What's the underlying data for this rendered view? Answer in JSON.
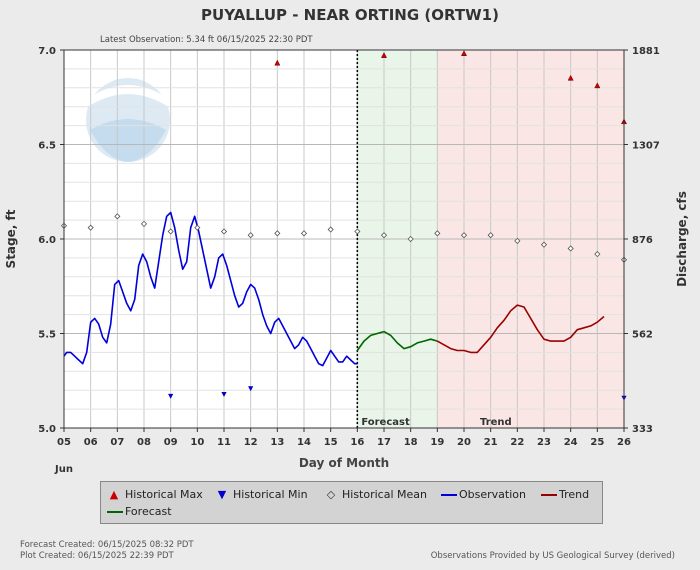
{
  "header": {
    "title": "PUYALLUP - NEAR ORTING  (ORTW1)",
    "latest_observation": "Latest Observation: 5.34 ft 06/15/2025 22:30 PDT"
  },
  "footer": {
    "forecast_created": "Forecast Created: 06/15/2025 08:32 PDT",
    "plot_created": "Plot Created: 06/15/2025 22:39 PDT",
    "provider": "Observations Provided by US Geological Survey (derived)"
  },
  "labels": {
    "forecast_region": "Forecast",
    "trend_region": "Trend",
    "month": "Jun"
  },
  "legend": {
    "hist_max": "Historical Max",
    "hist_min": "Historical Min",
    "hist_mean": "Historical Mean",
    "observation": "Observation",
    "trend": "Trend",
    "forecast": "Forecast"
  },
  "colors": {
    "observation": "#0000dd",
    "forecast": "#006600",
    "trend": "#990000",
    "hist_max": "#cc0000",
    "hist_min": "#0000cc",
    "forecast_bg": "#e8f5e8",
    "trend_bg": "#fbe6e6"
  },
  "chart_data": {
    "type": "line",
    "xlabel": "Day of Month",
    "ylabel": "Stage, ft",
    "y2label": "Discharge, cfs",
    "xlim": [
      5,
      26
    ],
    "ylim": [
      5.0,
      7.0
    ],
    "xticks": [
      "05",
      "06",
      "07",
      "08",
      "09",
      "10",
      "11",
      "12",
      "13",
      "14",
      "15",
      "16",
      "17",
      "18",
      "19",
      "20",
      "21",
      "22",
      "23",
      "24",
      "25",
      "26"
    ],
    "yticks": [
      "5.0",
      "5.5",
      "6.0",
      "6.5",
      "7.0"
    ],
    "y2ticks": [
      "333",
      "562",
      "876",
      "1307",
      "1881"
    ],
    "forecast_start": 16,
    "trend_start": 19,
    "grid": true,
    "legend_position": "bottom",
    "series": [
      {
        "name": "Observation",
        "x": [
          5.0,
          5.1,
          5.25,
          5.4,
          5.55,
          5.7,
          5.85,
          6.0,
          6.15,
          6.3,
          6.45,
          6.6,
          6.75,
          6.9,
          7.05,
          7.2,
          7.35,
          7.5,
          7.65,
          7.8,
          7.95,
          8.1,
          8.25,
          8.4,
          8.55,
          8.7,
          8.85,
          9.0,
          9.15,
          9.3,
          9.45,
          9.6,
          9.75,
          9.9,
          10.05,
          10.2,
          10.35,
          10.5,
          10.65,
          10.8,
          10.95,
          11.1,
          11.25,
          11.4,
          11.55,
          11.7,
          11.85,
          12.0,
          12.15,
          12.3,
          12.45,
          12.6,
          12.75,
          12.9,
          13.05,
          13.2,
          13.35,
          13.5,
          13.65,
          13.8,
          13.95,
          14.1,
          14.25,
          14.4,
          14.55,
          14.7,
          14.85,
          15.0,
          15.15,
          15.3,
          15.45,
          15.6,
          15.75,
          15.9,
          16.0
        ],
        "values": [
          5.38,
          5.4,
          5.4,
          5.38,
          5.36,
          5.34,
          5.4,
          5.56,
          5.58,
          5.55,
          5.48,
          5.45,
          5.55,
          5.76,
          5.78,
          5.72,
          5.66,
          5.62,
          5.68,
          5.86,
          5.92,
          5.88,
          5.8,
          5.74,
          5.88,
          6.02,
          6.12,
          6.14,
          6.06,
          5.94,
          5.84,
          5.88,
          6.06,
          6.12,
          6.04,
          5.94,
          5.84,
          5.74,
          5.8,
          5.9,
          5.92,
          5.86,
          5.78,
          5.7,
          5.64,
          5.66,
          5.72,
          5.76,
          5.74,
          5.68,
          5.6,
          5.54,
          5.5,
          5.56,
          5.58,
          5.54,
          5.5,
          5.46,
          5.42,
          5.44,
          5.48,
          5.46,
          5.42,
          5.38,
          5.34,
          5.33,
          5.37,
          5.41,
          5.38,
          5.35,
          5.35,
          5.38,
          5.36,
          5.34,
          5.34
        ]
      },
      {
        "name": "Forecast",
        "x": [
          16.0,
          16.25,
          16.5,
          16.75,
          17.0,
          17.25,
          17.5,
          17.75,
          18.0,
          18.25,
          18.5,
          18.75,
          19.0
        ],
        "values": [
          5.41,
          5.46,
          5.49,
          5.5,
          5.51,
          5.49,
          5.45,
          5.42,
          5.43,
          5.45,
          5.46,
          5.47,
          5.46
        ]
      },
      {
        "name": "Trend",
        "x": [
          19.0,
          19.25,
          19.5,
          19.75,
          20.0,
          20.25,
          20.5,
          20.75,
          21.0,
          21.25,
          21.5,
          21.75,
          22.0,
          22.25,
          22.5,
          22.75,
          23.0,
          23.25,
          23.5,
          23.75,
          24.0,
          24.25,
          24.5,
          24.75,
          25.0,
          25.25
        ],
        "values": [
          5.46,
          5.44,
          5.42,
          5.41,
          5.41,
          5.4,
          5.4,
          5.44,
          5.48,
          5.53,
          5.57,
          5.62,
          5.65,
          5.64,
          5.58,
          5.52,
          5.47,
          5.46,
          5.46,
          5.46,
          5.48,
          5.52,
          5.53,
          5.54,
          5.56,
          5.59
        ]
      },
      {
        "name": "Historical Max",
        "x": [
          13,
          17,
          20,
          24,
          25,
          26
        ],
        "values": [
          6.93,
          6.97,
          6.98,
          6.85,
          6.81,
          6.62
        ]
      },
      {
        "name": "Historical Min",
        "x": [
          9,
          11,
          12,
          26
        ],
        "values": [
          5.17,
          5.18,
          5.21,
          5.16
        ]
      },
      {
        "name": "Historical Mean",
        "x": [
          5,
          6,
          7,
          8,
          9,
          10,
          11,
          12,
          13,
          14,
          15,
          16,
          17,
          18,
          19,
          20,
          21,
          22,
          23,
          24,
          25,
          26
        ],
        "values": [
          6.07,
          6.06,
          6.12,
          6.08,
          6.04,
          6.06,
          6.04,
          6.02,
          6.03,
          6.03,
          6.05,
          6.04,
          6.02,
          6.0,
          6.03,
          6.02,
          6.02,
          5.99,
          5.97,
          5.95,
          5.92,
          5.89
        ]
      }
    ]
  }
}
